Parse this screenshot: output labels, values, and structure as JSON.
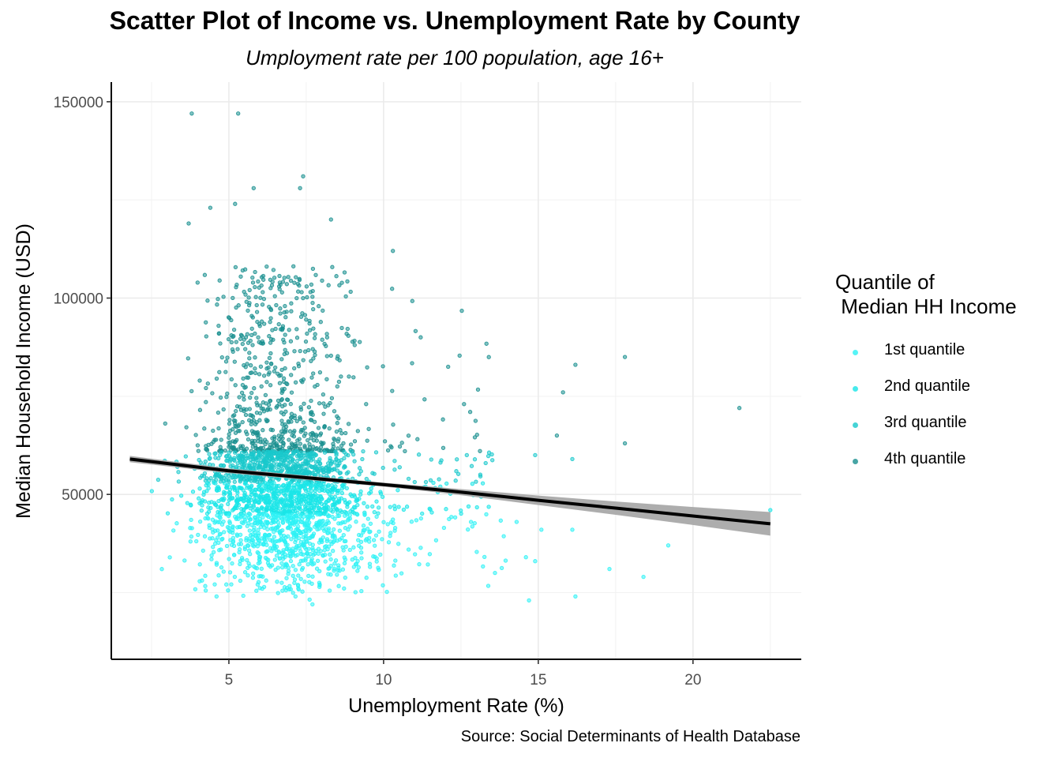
{
  "chart_data": {
    "type": "scatter",
    "title": "Scatter Plot of Income vs. Unemployment Rate by County",
    "subtitle": "Umployment rate per 100 population, age 16+",
    "xlabel": "Unemployment Rate (%)",
    "ylabel": "Median Household Income (USD)",
    "caption": "Source: Social Determinants of Health Database",
    "xlim": [
      1.2,
      23.5
    ],
    "ylim": [
      8000,
      155000
    ],
    "x_ticks": [
      5,
      10,
      15,
      20
    ],
    "x_tick_labels": [
      "5",
      "10",
      "15",
      "20"
    ],
    "y_ticks": [
      50000,
      100000,
      150000
    ],
    "y_tick_labels": [
      "50000",
      "100000",
      "150000"
    ],
    "grid": true,
    "legend": {
      "title": "Quantile of\n Median HH Income",
      "placement": "right",
      "entries": [
        "1st quantile",
        "2nd quantile",
        "3rd quantile",
        "4th quantile"
      ]
    },
    "series": [
      {
        "name": "4th quantile",
        "color": "#1a8f8f",
        "x_center": 6.5,
        "x_spread": 1.6,
        "y_range": [
          61000,
          147000
        ],
        "count": 700
      },
      {
        "name": "3rd quantile",
        "color": "#19c9cc",
        "x_center": 6.6,
        "x_spread": 1.7,
        "y_range": [
          53000,
          61000
        ],
        "count": 650
      },
      {
        "name": "2nd quantile",
        "color": "#1ae5e8",
        "x_center": 6.8,
        "x_spread": 1.8,
        "y_range": [
          45000,
          53000
        ],
        "count": 650
      },
      {
        "name": "1st quantile",
        "color": "#2df2f5",
        "x_center": 7.0,
        "x_spread": 2.0,
        "y_range": [
          22000,
          45000
        ],
        "count": 750
      }
    ],
    "notable_points": [
      {
        "x": 3.8,
        "y": 147000
      },
      {
        "x": 5.3,
        "y": 147000
      },
      {
        "x": 7.4,
        "y": 131000
      },
      {
        "x": 7.3,
        "y": 128000
      },
      {
        "x": 5.8,
        "y": 128000
      },
      {
        "x": 5.2,
        "y": 124000
      },
      {
        "x": 4.4,
        "y": 123000
      },
      {
        "x": 3.7,
        "y": 119000
      },
      {
        "x": 8.3,
        "y": 120000
      },
      {
        "x": 10.3,
        "y": 112000
      },
      {
        "x": 11.2,
        "y": 90000
      },
      {
        "x": 12.6,
        "y": 73000
      },
      {
        "x": 12.8,
        "y": 71000
      },
      {
        "x": 15.8,
        "y": 76000
      },
      {
        "x": 16.2,
        "y": 83000
      },
      {
        "x": 17.8,
        "y": 85000
      },
      {
        "x": 21.5,
        "y": 72000
      },
      {
        "x": 15.6,
        "y": 65000
      },
      {
        "x": 17.8,
        "y": 63000
      },
      {
        "x": 16.1,
        "y": 59000
      },
      {
        "x": 14.9,
        "y": 60000
      },
      {
        "x": 22.5,
        "y": 46000
      },
      {
        "x": 19.2,
        "y": 37000
      },
      {
        "x": 18.4,
        "y": 29000
      },
      {
        "x": 17.3,
        "y": 31000
      },
      {
        "x": 16.2,
        "y": 24000
      },
      {
        "x": 14.7,
        "y": 23000
      },
      {
        "x": 16.1,
        "y": 41000
      },
      {
        "x": 15.1,
        "y": 41000
      },
      {
        "x": 14.3,
        "y": 43000
      },
      {
        "x": 14.6,
        "y": 34000
      },
      {
        "x": 14.9,
        "y": 33000
      },
      {
        "x": 13.6,
        "y": 30000
      },
      {
        "x": 7.7,
        "y": 22000
      },
      {
        "x": 4.6,
        "y": 24000
      }
    ],
    "trend_line": {
      "x": [
        1.8,
        5,
        10,
        12,
        15,
        17.5,
        20,
        22.5
      ],
      "y": [
        59000,
        56000,
        52500,
        51000,
        48500,
        46500,
        44500,
        42500
      ],
      "ci_halfwidth": [
        800,
        600,
        500,
        700,
        1200,
        1700,
        2300,
        3000
      ],
      "color": "#000000",
      "ci_color": "#a9a9a9"
    }
  }
}
